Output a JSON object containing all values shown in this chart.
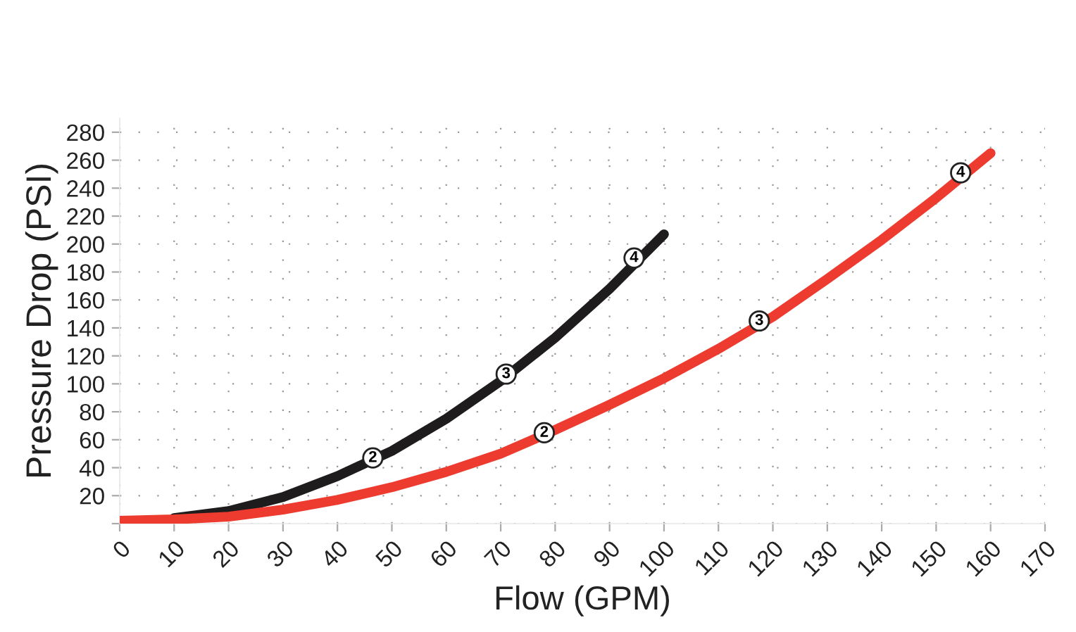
{
  "chart_data": {
    "type": "line",
    "xlabel": "Flow (GPM)",
    "ylabel": "Pressure Drop (PSI)",
    "xlim": [
      0,
      170
    ],
    "xticks": [
      0,
      10,
      20,
      30,
      40,
      50,
      60,
      70,
      80,
      90,
      100,
      110,
      120,
      130,
      140,
      150,
      160,
      170
    ],
    "ylim": [
      0,
      290
    ],
    "yticks": [
      {
        "value": 0,
        "label": null
      },
      20,
      40,
      60,
      80,
      100,
      120,
      140,
      160,
      180,
      200,
      220,
      240,
      260,
      280
    ],
    "grid": true,
    "marker": "none",
    "line_style": "solid",
    "series": [
      {
        "color": "#1e1c1c",
        "x": [
          10,
          20,
          30,
          40,
          50,
          60,
          70,
          80,
          90,
          100
        ],
        "values": [
          4,
          9,
          19,
          34,
          52,
          75,
          102,
          133,
          168,
          207
        ]
      },
      {
        "color": "#ee3b30",
        "x": [
          0,
          10,
          20,
          30,
          40,
          50,
          60,
          70,
          80,
          90,
          100,
          110,
          120,
          130,
          140,
          150,
          160
        ],
        "values": [
          2,
          3,
          5,
          10,
          17,
          26,
          37,
          50,
          67,
          85,
          104,
          125,
          148,
          175,
          203,
          233,
          265
        ]
      }
    ],
    "annotations": [
      {
        "text": "2",
        "x": 46.5,
        "y": 47
      },
      {
        "text": "3",
        "x": 71,
        "y": 107
      },
      {
        "text": "4",
        "x": 94.5,
        "y": 190
      },
      {
        "text": "2",
        "x": 78,
        "y": 65
      },
      {
        "text": "3",
        "x": 117.5,
        "y": 145
      },
      {
        "text": "4",
        "x": 154.5,
        "y": 251
      }
    ]
  }
}
